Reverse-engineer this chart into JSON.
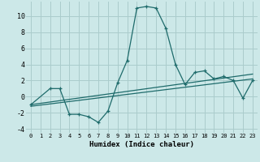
{
  "xlabel": "Humidex (Indice chaleur)",
  "bg_color": "#cce8e8",
  "grid_color": "#aacccc",
  "line_color": "#1e6b6b",
  "xlim": [
    -0.5,
    23.5
  ],
  "ylim": [
    -4.5,
    11.8
  ],
  "xticks": [
    0,
    1,
    2,
    3,
    4,
    5,
    6,
    7,
    8,
    9,
    10,
    11,
    12,
    13,
    14,
    15,
    16,
    17,
    18,
    19,
    20,
    21,
    22,
    23
  ],
  "yticks": [
    -4,
    -2,
    0,
    2,
    4,
    6,
    8,
    10
  ],
  "series1_x": [
    0,
    2,
    3,
    4,
    5,
    6,
    7,
    8,
    9,
    10,
    11,
    12,
    13,
    14,
    15,
    16,
    17,
    18,
    19,
    20,
    21,
    22,
    23
  ],
  "series1_y": [
    -1.0,
    1.0,
    1.0,
    -2.2,
    -2.2,
    -2.5,
    -3.2,
    -1.8,
    1.7,
    4.5,
    11.0,
    11.2,
    11.0,
    8.5,
    4.0,
    1.5,
    3.0,
    3.2,
    2.2,
    2.5,
    2.0,
    -0.2,
    2.0
  ],
  "series2_x": [
    0,
    23
  ],
  "series2_y": [
    -1.0,
    2.8
  ],
  "series3_x": [
    0,
    23
  ],
  "series3_y": [
    -1.2,
    2.2
  ]
}
